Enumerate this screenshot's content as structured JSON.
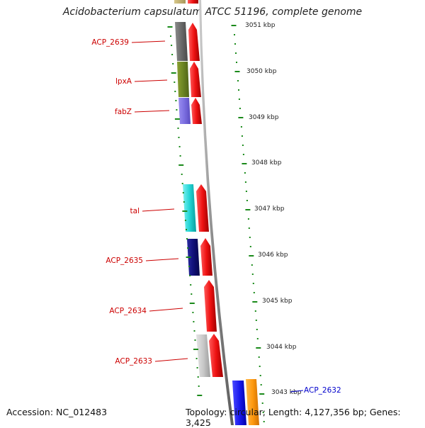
{
  "title": "Acidobacterium capsulatum ATCC 51196, complete genome",
  "footer": {
    "accession": "Accession: NC_012483",
    "summary": "Topology: circular; Length: 4,127,356 bp; Genes: 3,425"
  },
  "colors": {
    "label_red": "#cc0000",
    "label_blue": "#0000cc",
    "tick_green": "#1a8a1a",
    "strand_red": "#ee1111",
    "backbone_grey": "#888888"
  },
  "scale_labels": [
    "3051 kbp",
    "3050 kbp",
    "3049 kbp",
    "3048 kbp",
    "3047 kbp",
    "3046 kbp",
    "3045 kbp",
    "3044 kbp",
    "3043 kbp"
  ],
  "gene_labels": [
    {
      "text": "ACP_2639",
      "color": "#cc0000"
    },
    {
      "text": "lpxA",
      "color": "#cc0000"
    },
    {
      "text": "fabZ",
      "color": "#cc0000"
    },
    {
      "text": "tal",
      "color": "#cc0000"
    },
    {
      "text": "ACP_2635",
      "color": "#cc0000"
    },
    {
      "text": "ACP_2634",
      "color": "#cc0000"
    },
    {
      "text": "ACP_2633",
      "color": "#cc0000"
    },
    {
      "text": "ACP_2632",
      "color": "#0000cc"
    }
  ]
}
